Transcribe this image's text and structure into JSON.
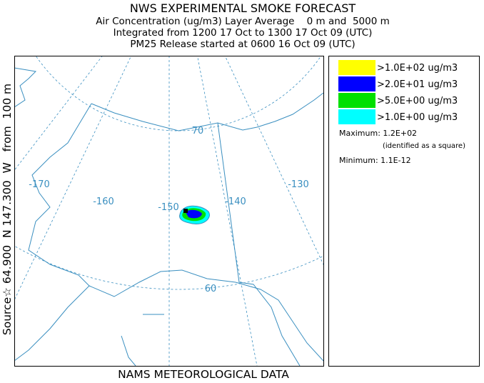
{
  "header": {
    "title": "NWS EXPERIMENTAL SMOKE FORECAST",
    "lines": [
      "Air Concentration (ug/m3) Layer Average    0 m and  5000 m",
      "Integrated from 1200 17 Oct to 1300 17 Oct 09 (UTC)",
      "PM25 Release started at 0600 16 Oct 09 (UTC)"
    ]
  },
  "side_label": "Source☆ 64.900  N 147.300  W   from  100 m",
  "footer": "NAMS METEOROLOGICAL DATA",
  "legend": {
    "items": [
      {
        "label": ">1.0E+02 ug/m3",
        "color": "#ffff00"
      },
      {
        "label": ">2.0E+01 ug/m3",
        "color": "#0000ff"
      },
      {
        "label": ">5.0E+00 ug/m3",
        "color": "#00e000"
      },
      {
        "label": ">1.0E+00 ug/m3",
        "color": "#00ffff"
      }
    ],
    "maximum": "Maximum: 1.2E+02",
    "identified": "(identified as a square)",
    "minimum": "Minimum: 1.1E-12"
  },
  "map": {
    "labels": [
      "-170",
      "-160",
      "-150",
      "-140",
      "-130",
      "70",
      "60"
    ]
  }
}
